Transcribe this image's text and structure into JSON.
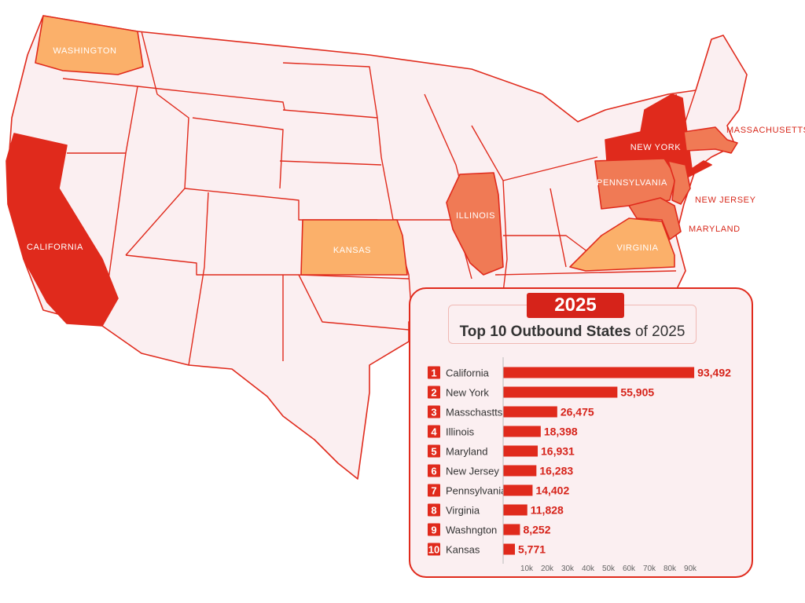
{
  "map_labels": {
    "washington": "WASHINGTON",
    "california": "CALIFORNIA",
    "kansas": "KANSAS",
    "illinois": "ILLINOIS",
    "new_york": "NEW YORK",
    "pennsylvania": "PENNSYLVANIA",
    "virginia": "VIRGINIA",
    "massachusetts": "MASSACHUSETTS",
    "new_jersey": "NEW JERSEY",
    "maryland": "MARYLAND"
  },
  "colors": {
    "top_tier": "#e02a1c",
    "mid_tier": "#f07a55",
    "low_tier": "#fbb06a",
    "base_state": "#fbeff1",
    "border": "#e02a1c"
  },
  "panel": {
    "year": "2025",
    "title_bold": "Top 10 Outbound States",
    "title_rest": " of 2025"
  },
  "chart_data": {
    "type": "bar",
    "orientation": "horizontal",
    "ranks": [
      "1",
      "2",
      "3",
      "4",
      "5",
      "6",
      "7",
      "8",
      "9",
      "10"
    ],
    "categories": [
      "California",
      "New York",
      "Masschastts",
      "Illinois",
      "Maryland",
      "New Jersey",
      "Pennsylvania",
      "Virginia",
      "Washngton",
      "Kansas"
    ],
    "values": [
      93492,
      55905,
      26475,
      18398,
      16931,
      16283,
      14402,
      11828,
      8252,
      5771
    ],
    "value_labels": [
      "93,492",
      "55,905",
      "26,475",
      "18,398",
      "16,931",
      "16,283",
      "14,402",
      "11,828",
      "8,252",
      "5,771"
    ],
    "xticks": [
      "10k",
      "20k",
      "30k",
      "40k",
      "50k",
      "60k",
      "70k",
      "80k",
      "90k"
    ],
    "xlim": [
      0,
      90000
    ],
    "bar_color": "#e02a1c",
    "grid": false
  }
}
